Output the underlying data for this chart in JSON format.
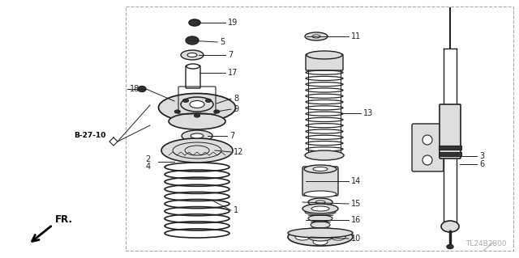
{
  "bg_color": "#ffffff",
  "border_color": "#aaaaaa",
  "line_color": "#222222",
  "part_color": "#dddddd",
  "dark_color": "#333333",
  "title_code": "TL24B2800",
  "figsize": [
    6.4,
    3.19
  ],
  "dpi": 100
}
